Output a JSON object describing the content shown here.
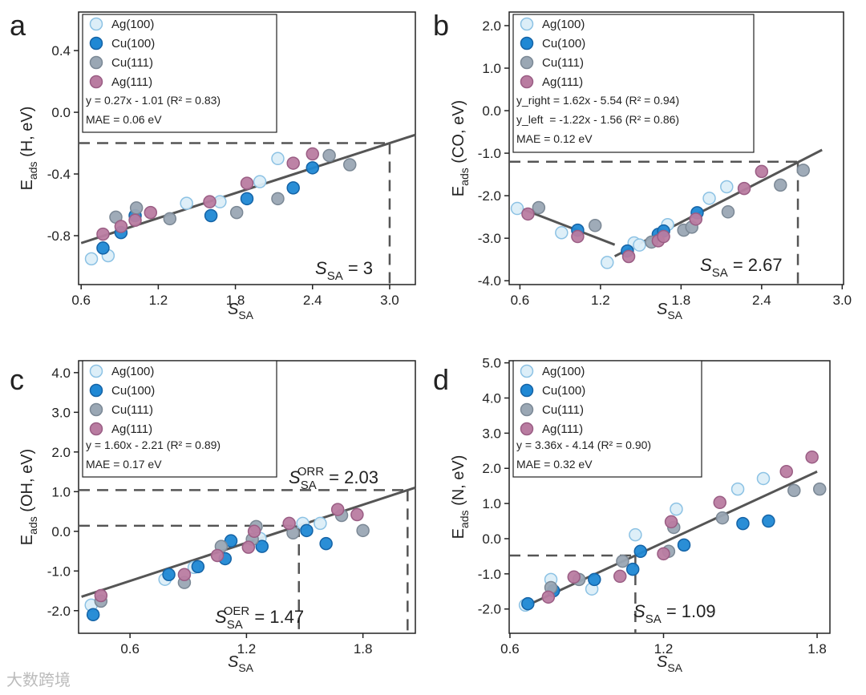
{
  "series_styles": {
    "Ag(100)": {
      "fill": "#dceef8",
      "stroke": "#8cc2e4"
    },
    "Cu(100)": {
      "fill": "#1f88d4",
      "stroke": "#1463a6"
    },
    "Cu(111)": {
      "fill": "#9aa7b4",
      "stroke": "#7b8895"
    },
    "Ag(111)": {
      "fill": "#b97ca1",
      "stroke": "#9a5d84"
    }
  },
  "line_color": "#555555",
  "watermark": "大数跨境",
  "chart_data": [
    {
      "panel": "a",
      "type": "scatter",
      "xlabel": {
        "main": "S",
        "sub": "SA"
      },
      "ylabel": {
        "main": "E",
        "sub": "ads",
        "rest": " (H, eV)"
      },
      "xlim": [
        0.58,
        3.2
      ],
      "ylim": [
        -1.117,
        0.65
      ],
      "xticks": [
        0.6,
        1.2,
        1.8,
        2.4,
        3.0
      ],
      "xtick_labels": [
        "0.6",
        "1.2",
        "1.8",
        "2.4",
        "3.0"
      ],
      "yticks": [
        0.4,
        0.0,
        -0.4,
        -0.8
      ],
      "ytick_labels": [
        "0.4",
        "0.0",
        "-0.4",
        "-0.8"
      ],
      "legend": [
        "Ag(100)",
        "Cu(100)",
        "Cu(111)",
        "Ag(111)"
      ],
      "legend_text": [
        "y = 0.27x - 1.01 (R² = 0.83)",
        "MAE = 0.06 eV"
      ],
      "fits": [
        {
          "slope": 0.27,
          "intercept": -1.01,
          "x": [
            0.6,
            3.2
          ]
        }
      ],
      "refs": [
        {
          "x": 3.0,
          "y": -0.2
        }
      ],
      "annotations": [
        {
          "main": "S",
          "sub": "SA",
          "sup": "",
          "text": " = 3"
        }
      ],
      "series": [
        {
          "name": "Ag(100)",
          "x": [
            0.68,
            0.81,
            1.42,
            1.68,
            1.99,
            2.13
          ],
          "y": [
            -0.95,
            -0.93,
            -0.59,
            -0.58,
            -0.45,
            -0.3
          ]
        },
        {
          "name": "Cu(100)",
          "x": [
            0.77,
            0.91,
            1.02,
            1.61,
            1.89,
            2.25,
            2.4
          ],
          "y": [
            -0.88,
            -0.78,
            -0.67,
            -0.67,
            -0.56,
            -0.49,
            -0.36
          ]
        },
        {
          "name": "Cu(111)",
          "x": [
            0.87,
            1.03,
            1.29,
            1.81,
            2.13,
            2.53,
            2.69
          ],
          "y": [
            -0.68,
            -0.62,
            -0.69,
            -0.65,
            -0.56,
            -0.28,
            -0.34
          ]
        },
        {
          "name": "Ag(111)",
          "x": [
            0.77,
            0.91,
            1.02,
            1.14,
            1.6,
            1.89,
            2.25,
            2.4
          ],
          "y": [
            -0.79,
            -0.74,
            -0.7,
            -0.65,
            -0.58,
            -0.46,
            -0.33,
            -0.27
          ]
        }
      ]
    },
    {
      "panel": "b",
      "type": "scatter",
      "xlabel": {
        "main": "S",
        "sub": "SA"
      },
      "ylabel": {
        "main": "E",
        "sub": "ads",
        "rest": " (CO, eV)"
      },
      "xlim": [
        0.52,
        3.01
      ],
      "ylim": [
        -4.09,
        2.32
      ],
      "xticks": [
        0.6,
        1.2,
        1.8,
        2.4,
        3.0
      ],
      "xtick_labels": [
        "0.6",
        "1.2",
        "1.8",
        "2.4",
        "3.0"
      ],
      "yticks": [
        2,
        1,
        0,
        -1,
        -2,
        -3,
        -4
      ],
      "ytick_labels": [
        "2.0",
        "1.0",
        "0.0",
        "-1.0",
        "-2.0",
        "-3.0",
        "-4.0"
      ],
      "legend": [
        "Ag(100)",
        "Cu(100)",
        "Cu(111)",
        "Ag(111)"
      ],
      "legend_text": [
        "y_right = 1.62x - 5.54 (R² = 0.94)",
        "y_left  = -1.22x - 1.56 (R² = 0.86)",
        "MAE = 0.12 eV"
      ],
      "fits": [
        {
          "slope": -1.22,
          "intercept": -1.56,
          "x": [
            0.6,
            1.306
          ]
        },
        {
          "slope": 1.62,
          "intercept": -5.54,
          "x": [
            1.306,
            2.85
          ]
        }
      ],
      "refs": [
        {
          "x": 2.67,
          "y": -1.2
        }
      ],
      "annotations": [
        {
          "main": "S",
          "sub": "SA",
          "sup": "",
          "text": " = 2.67"
        }
      ],
      "series": [
        {
          "name": "Ag(100)",
          "x": [
            0.58,
            0.91,
            1.25,
            1.45,
            1.49,
            1.7,
            2.01,
            2.14
          ],
          "y": [
            -2.3,
            -2.87,
            -3.57,
            -3.11,
            -3.16,
            -2.68,
            -2.06,
            -1.79
          ]
        },
        {
          "name": "Cu(100)",
          "x": [
            1.03,
            1.4,
            1.63,
            1.67,
            1.92
          ],
          "y": [
            -2.81,
            -3.3,
            -2.91,
            -2.83,
            -2.4
          ]
        },
        {
          "name": "Cu(111)",
          "x": [
            0.74,
            1.16,
            1.58,
            1.82,
            1.88,
            2.15,
            2.54,
            2.71
          ],
          "y": [
            -2.28,
            -2.7,
            -3.09,
            -2.81,
            -2.74,
            -2.38,
            -1.75,
            -1.4
          ]
        },
        {
          "name": "Ag(111)",
          "x": [
            0.66,
            1.03,
            1.41,
            1.63,
            1.67,
            1.91,
            2.27,
            2.4
          ],
          "y": [
            -2.43,
            -2.96,
            -3.43,
            -3.06,
            -2.96,
            -2.55,
            -1.83,
            -1.43
          ]
        }
      ]
    },
    {
      "panel": "c",
      "type": "scatter",
      "xlabel": {
        "main": "S",
        "sub": "SA"
      },
      "ylabel": {
        "main": "E",
        "sub": "ads",
        "rest": " (OH, eV)"
      },
      "xlim": [
        0.335,
        2.07
      ],
      "ylim": [
        -2.57,
        4.3
      ],
      "xticks": [
        0.6,
        1.2,
        1.8
      ],
      "xtick_labels": [
        "0.6",
        "1.2",
        "1.8"
      ],
      "yticks": [
        4,
        3,
        2,
        1,
        0,
        -1,
        -2
      ],
      "ytick_labels": [
        "4.0",
        "3.0",
        "2.0",
        "1.0",
        "0.0",
        "-1.0",
        "-2.0"
      ],
      "legend": [
        "Ag(100)",
        "Cu(100)",
        "Cu(111)",
        "Ag(111)"
      ],
      "legend_text": [
        "y = 1.60x - 2.21 (R² = 0.89)",
        "MAE = 0.17 eV"
      ],
      "fits": [
        {
          "slope": 1.6,
          "intercept": -2.21,
          "x": [
            0.35,
            2.07
          ]
        }
      ],
      "refs": [
        {
          "x": 2.03,
          "y": 1.04
        },
        {
          "x": 1.47,
          "y": 0.14
        }
      ],
      "annotations": [
        {
          "main": "S",
          "sub": "SA",
          "sup": "ORR",
          "text": " = 2.03"
        },
        {
          "main": "S",
          "sub": "SA",
          "sup": "OER",
          "text": " = 1.47"
        }
      ],
      "series": [
        {
          "name": "Ag(100)",
          "x": [
            0.4,
            0.78,
            0.93,
            1.27,
            1.49,
            1.58
          ],
          "y": [
            -1.86,
            -1.21,
            -0.91,
            -0.18,
            0.2,
            0.2
          ]
        },
        {
          "name": "Cu(100)",
          "x": [
            0.41,
            0.8,
            0.95,
            1.09,
            1.12,
            1.28,
            1.51,
            1.61
          ],
          "y": [
            -2.1,
            -1.09,
            -0.89,
            -0.69,
            -0.24,
            -0.38,
            0.02,
            -0.31
          ]
        },
        {
          "name": "Cu(111)",
          "x": [
            0.45,
            0.88,
            1.07,
            1.25,
            1.23,
            1.44,
            1.69,
            1.8
          ],
          "y": [
            -1.76,
            -1.29,
            -0.38,
            0.12,
            -0.2,
            -0.04,
            0.4,
            0.02
          ]
        },
        {
          "name": "Ag(111)",
          "x": [
            0.45,
            0.88,
            1.05,
            1.24,
            1.21,
            1.42,
            1.67,
            1.77
          ],
          "y": [
            -1.62,
            -1.09,
            -0.61,
            0.0,
            -0.4,
            0.2,
            0.55,
            0.42
          ]
        }
      ]
    },
    {
      "panel": "d",
      "type": "scatter",
      "xlabel": {
        "main": "S",
        "sub": "SA"
      },
      "ylabel": {
        "main": "E",
        "sub": "ads",
        "rest": " (N, eV)"
      },
      "xlim": [
        0.597,
        1.85
      ],
      "ylim": [
        -2.69,
        5.06
      ],
      "xticks": [
        0.6,
        1.2,
        1.8
      ],
      "xtick_labels": [
        "0.6",
        "1.2",
        "1.8"
      ],
      "yticks": [
        5,
        4,
        3,
        2,
        1,
        0,
        -1,
        -2
      ],
      "ytick_labels": [
        "5.0",
        "4.0",
        "3.0",
        "2.0",
        "1.0",
        "0.0",
        "-1.0",
        "-2.0"
      ],
      "legend": [
        "Ag(100)",
        "Cu(100)",
        "Cu(111)",
        "Ag(111)"
      ],
      "legend_text": [
        "y = 3.36x - 4.14 (R² = 0.90)",
        "MAE = 0.32 eV"
      ],
      "fits": [
        {
          "slope": 3.36,
          "intercept": -4.14,
          "x": [
            0.65,
            1.8
          ]
        }
      ],
      "refs": [
        {
          "x": 1.09,
          "y": -0.48
        }
      ],
      "annotations": [
        {
          "main": "S",
          "sub": "SA",
          "sup": "",
          "text": " = 1.09"
        }
      ],
      "series": [
        {
          "name": "Ag(100)",
          "x": [
            0.66,
            0.76,
            0.92,
            1.09,
            1.25,
            1.49,
            1.59
          ],
          "y": [
            -1.89,
            -1.16,
            -1.43,
            0.11,
            0.84,
            1.41,
            1.71
          ]
        },
        {
          "name": "Cu(100)",
          "x": [
            0.67,
            0.77,
            0.93,
            1.08,
            1.11,
            1.28,
            1.51,
            1.61
          ],
          "y": [
            -1.85,
            -1.48,
            -1.16,
            -0.87,
            -0.36,
            -0.18,
            0.43,
            0.5
          ]
        },
        {
          "name": "Cu(111)",
          "x": [
            0.76,
            0.87,
            1.04,
            1.22,
            1.24,
            1.43,
            1.71,
            1.81
          ],
          "y": [
            -1.39,
            -1.16,
            -0.64,
            -0.36,
            0.32,
            0.59,
            1.37,
            1.41
          ]
        },
        {
          "name": "Ag(111)",
          "x": [
            0.75,
            0.85,
            1.03,
            1.2,
            1.23,
            1.42,
            1.68,
            1.78
          ],
          "y": [
            -1.66,
            -1.09,
            -1.07,
            -0.43,
            0.48,
            1.03,
            1.91,
            2.32
          ]
        }
      ]
    }
  ]
}
